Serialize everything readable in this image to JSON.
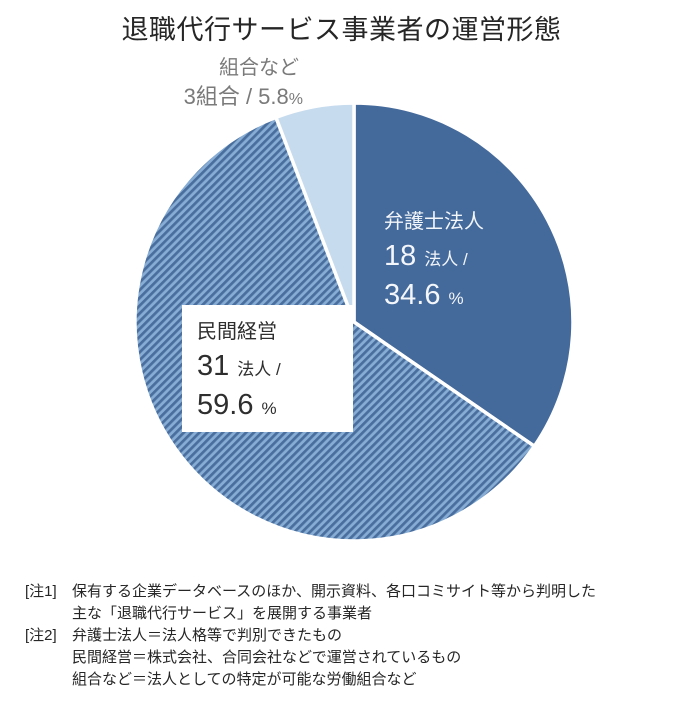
{
  "title": "退職代行サービス事業者の運営形態",
  "chart_data": {
    "type": "pie",
    "title": "退職代行サービス事業者の運営形態",
    "direction": "clockwise",
    "start_angle_deg": 0,
    "legend_position": "none",
    "segments": [
      {
        "label": "弁護士法人",
        "count": 18,
        "count_unit": "法人",
        "percent": 34.6,
        "fill": "#44699B",
        "pattern": "solid"
      },
      {
        "label": "民間経営",
        "count": 31,
        "count_unit": "法人",
        "percent": 59.6,
        "fill": "#4A6F9E",
        "pattern": "diagonal-stripes"
      },
      {
        "label": "組合など",
        "count": 3,
        "count_unit": "組合",
        "percent": 5.8,
        "fill": "#C6DBEE",
        "pattern": "solid"
      }
    ],
    "stripe_colors": {
      "dark": "#4A6F9E",
      "light": "#87ADD5"
    },
    "slice_border_color": "#FFFFFF"
  },
  "canvas_labels": {
    "lawyer": {
      "name": "弁護士法人",
      "count": "18",
      "count_suffix": "法人 /",
      "percent": "34.6",
      "percent_suffix": "%"
    },
    "private": {
      "name": "民間経営",
      "count": "31",
      "count_suffix": "法人 /",
      "percent": "59.6",
      "percent_suffix": "%"
    },
    "union": {
      "name": "組合など",
      "value": "3組合 / 5.8",
      "percent_suffix": "%"
    }
  },
  "notes": [
    {
      "label": "[注1]",
      "lines": [
        "保有する企業データベースのほか、開示資料、各口コミサイト等から判明した",
        "主な「退職代行サービス」を展開する事業者"
      ]
    },
    {
      "label": "[注2]",
      "lines": [
        "弁護士法人＝法人格等で判別できたもの",
        "民間経営＝株式会社、合同会社などで運営されているもの",
        "組合など＝法人としての特定が可能な労働組合など"
      ]
    }
  ]
}
